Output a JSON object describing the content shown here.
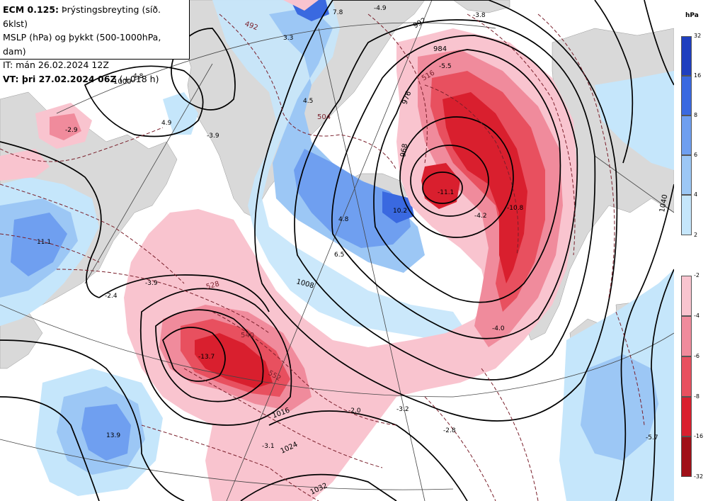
{
  "header": {
    "line1_prefix": "ECM 0.125:",
    "line1_rest": " Þrýstingsbreyting (síð. 6klst)",
    "line2": "MSLP (hPa) og þykkt (500-1000hPa, dam)",
    "line3": "IT: mán 26.02.2024 12Z",
    "line4_prefix": "VT: þri 27.02.2024 06Z",
    "line4_rest": " (+018 h)"
  },
  "legend": {
    "unit": "hPa",
    "positive": [
      {
        "tick": "32",
        "color": "#1f3fbf"
      },
      {
        "tick": "16",
        "color": "#3a69e0"
      },
      {
        "tick": "8",
        "color": "#6f9ff0"
      },
      {
        "tick": "6",
        "color": "#9cc7f5"
      },
      {
        "tick": "4",
        "color": "#c5e6fb"
      },
      {
        "tick": "2",
        "color": "#c5e6fb"
      }
    ],
    "negative": [
      {
        "tick": "-2",
        "color": "#f9c4cf"
      },
      {
        "tick": "-4",
        "color": "#f08b9c"
      },
      {
        "tick": "-6",
        "color": "#e8505f"
      },
      {
        "tick": "-8",
        "color": "#d91f2e"
      },
      {
        "tick": "-16",
        "color": "#a01018"
      },
      {
        "tick": "-32",
        "color": "#a01018"
      }
    ]
  },
  "map_labels": {
    "tendency": [
      "7.8",
      "-4.9",
      "-3.8",
      "3.3",
      "-5.5",
      "4.8",
      "4.5",
      "4.9",
      "-3.9",
      "4.8",
      "-11.1",
      "10.2",
      "-4.2",
      "-10.8",
      "6.5",
      "11.1",
      "-2.4",
      "-3.9",
      "-13.7",
      "-2.0",
      "-3.2",
      "13.9",
      "-3.1",
      "-2.8",
      "-2.9",
      "-4.0",
      "-5.7"
    ],
    "isobars": [
      "992",
      "984",
      "976",
      "968",
      "1000",
      "1008",
      "1016",
      "1024",
      "1032",
      "1040"
    ],
    "thickness": [
      "492",
      "504",
      "528",
      "540",
      "552",
      "516"
    ]
  },
  "colors": {
    "isobar": "#000000",
    "thickness": "#7a1f2b",
    "land": "#d9d9d9",
    "grid": "#444444"
  }
}
